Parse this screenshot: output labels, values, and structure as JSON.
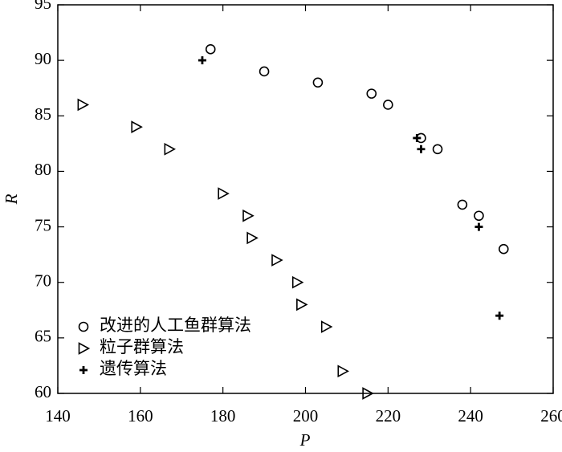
{
  "chart_data": {
    "type": "scatter",
    "x_label": "P",
    "y_label": "R",
    "xlim": [
      140,
      260
    ],
    "xticks": [
      140,
      160,
      180,
      200,
      220,
      240,
      260
    ],
    "ylim": [
      60,
      95
    ],
    "yticks": [
      60,
      65,
      70,
      75,
      80,
      85,
      90,
      95
    ],
    "legend": "lower left",
    "series": [
      {
        "name": "改进的人工鱼群算法",
        "marker": "circle",
        "color": "#000000",
        "x": [
          177,
          190,
          203,
          216,
          220,
          228,
          232,
          238,
          242,
          248
        ],
        "y": [
          91,
          89,
          88,
          87,
          86,
          83,
          82,
          77,
          76,
          73
        ]
      },
      {
        "name": "粒子群算法",
        "marker": "triangle",
        "color": "#000000",
        "x": [
          146,
          159,
          167,
          180,
          186,
          187,
          193,
          198,
          199,
          205,
          209,
          215
        ],
        "y": [
          86,
          84,
          82,
          78,
          76,
          74,
          72,
          70,
          68,
          66,
          62,
          60
        ]
      },
      {
        "name": "遗传算法",
        "marker": "plus",
        "color": "#000000",
        "x": [
          175,
          227,
          228,
          242,
          247
        ],
        "y": [
          90,
          83,
          82,
          75,
          67
        ]
      }
    ]
  }
}
